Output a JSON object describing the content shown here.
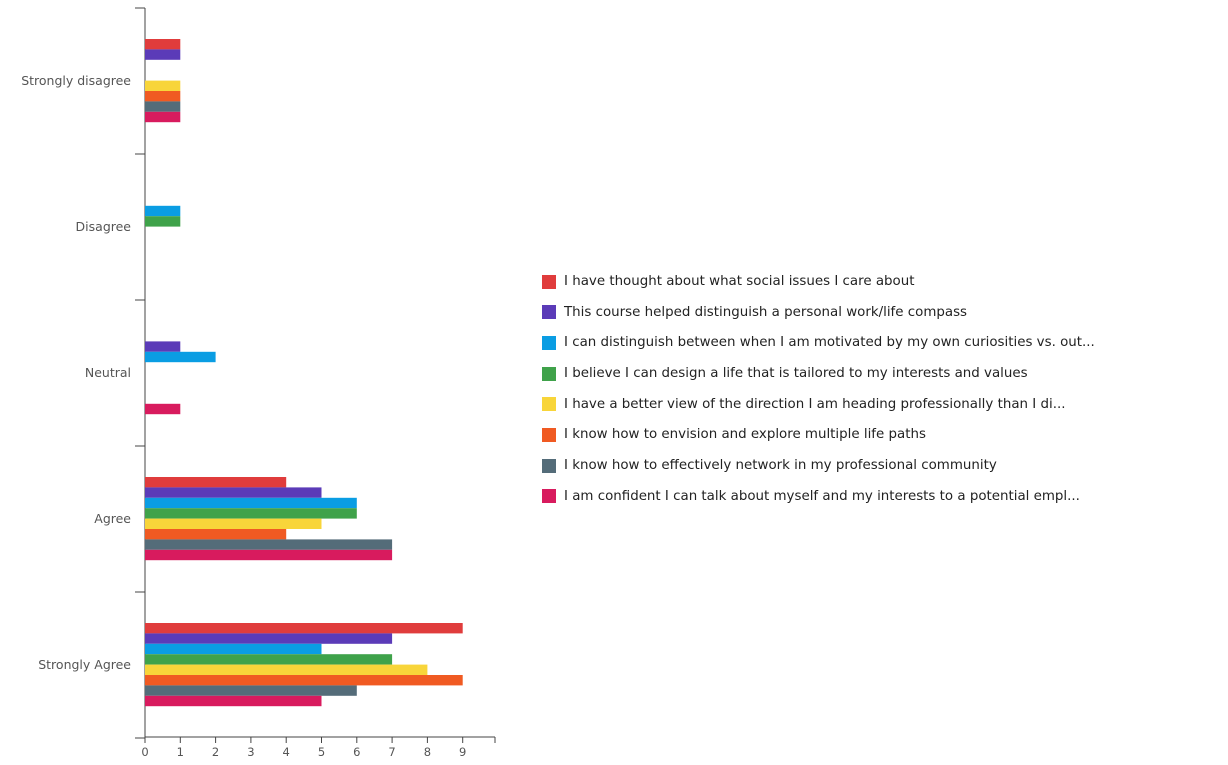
{
  "chart_data": {
    "type": "bar",
    "orientation": "horizontal",
    "categories": [
      "Strongly disagree",
      "Disagree",
      "Neutral",
      "Agree",
      "Strongly Agree"
    ],
    "xlim": [
      0,
      10
    ],
    "x_ticks": [
      "0",
      "1",
      "2",
      "3",
      "4",
      "5",
      "6",
      "7",
      "8",
      "9"
    ],
    "grid": false,
    "legend_position": "right",
    "series": [
      {
        "name": "I have thought about what social issues I care about",
        "color": "#e03c3c",
        "values": [
          1,
          0,
          0,
          4,
          9
        ]
      },
      {
        "name": "This course helped distinguish a personal work/life compass",
        "color": "#5b3bb8",
        "values": [
          1,
          0,
          1,
          5,
          7
        ]
      },
      {
        "name": "I can distinguish between when I am motivated by my own curiosities vs. out...",
        "color": "#0a9de3",
        "values": [
          0,
          1,
          2,
          6,
          5
        ]
      },
      {
        "name": "I believe I can design a life that is tailored to my interests and values",
        "color": "#3fa24a",
        "values": [
          0,
          1,
          0,
          6,
          7
        ]
      },
      {
        "name": "I have a better view of the direction I am heading professionally than I di...",
        "color": "#f8d53a",
        "values": [
          1,
          0,
          0,
          5,
          8
        ]
      },
      {
        "name": "I know how to envision and explore multiple life paths",
        "color": "#f05a22",
        "values": [
          1,
          0,
          0,
          4,
          9
        ]
      },
      {
        "name": "I know how to effectively network in my professional community",
        "color": "#546c79",
        "values": [
          1,
          0,
          0,
          7,
          6
        ]
      },
      {
        "name": "I am confident I can talk about myself and my interests to a potential empl...",
        "color": "#d81b5e",
        "values": [
          1,
          0,
          1,
          7,
          5
        ]
      }
    ]
  }
}
